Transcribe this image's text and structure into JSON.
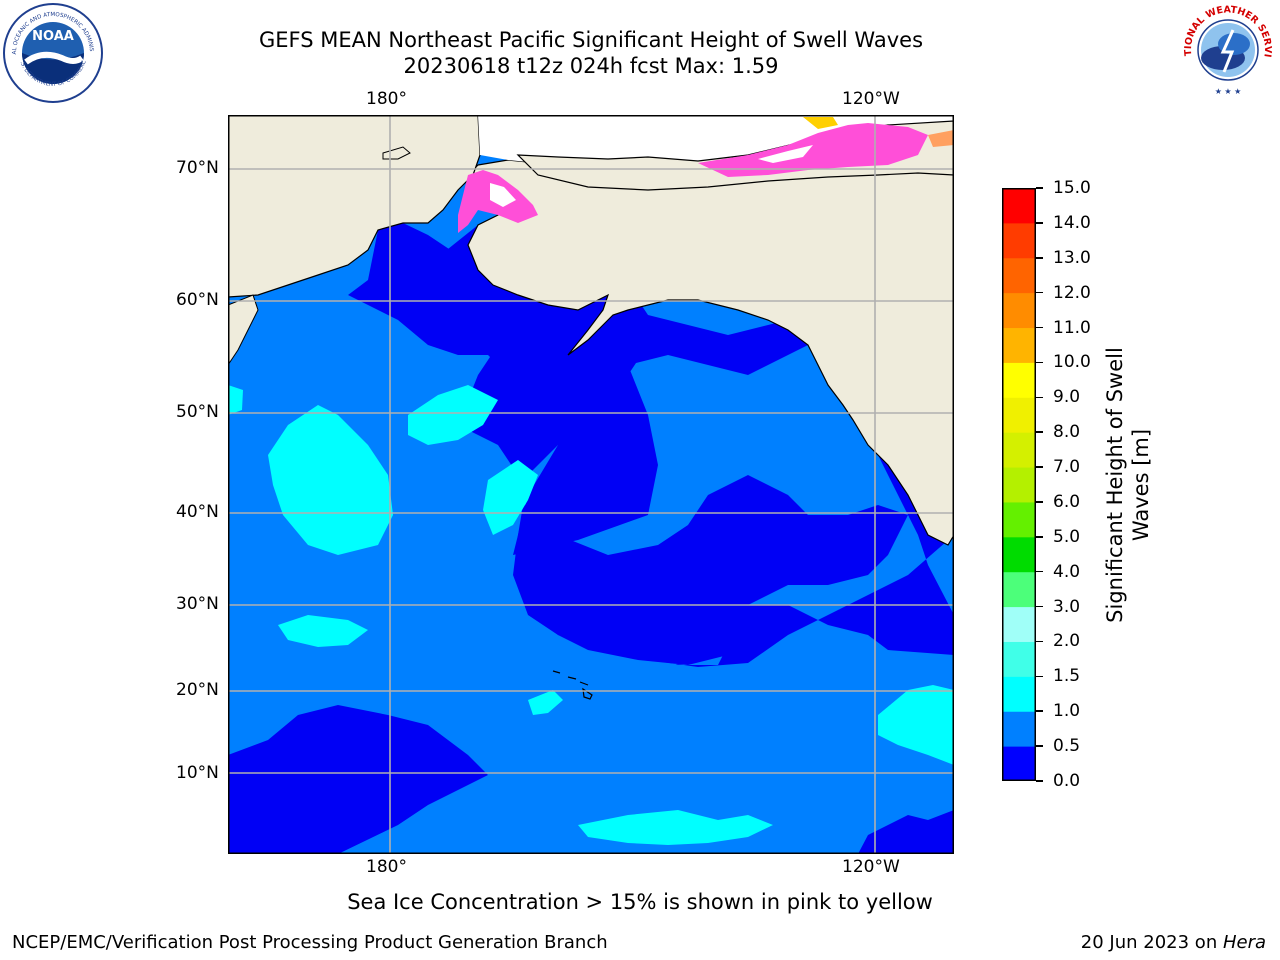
{
  "header": {
    "title_line1": "GEFS MEAN Northeast Pacific Significant Height of Swell Waves",
    "title_line2": "20230618 t12z 024h fcst   Max: 1.59"
  },
  "logos": {
    "noaa": {
      "text": "NOAA",
      "ring_text_top": "NATIONAL OCEANIC AND ATMOSPHERIC ADMINISTRATION",
      "ring_text_bottom": "U.S. DEPARTMENT OF COMMERCE"
    },
    "nws": {
      "ring_text": "NATIONAL WEATHER SERVICE"
    }
  },
  "map": {
    "top_lon_labels": [
      "180°",
      "120°W"
    ],
    "bottom_lon_labels": [
      "180°",
      "120°W"
    ],
    "lat_labels": [
      "70°N",
      "60°N",
      "50°N",
      "40°N",
      "30°N",
      "20°N",
      "10°N"
    ],
    "colors": {
      "land": "#efecdc",
      "ocean_deep": "#0000f5",
      "band_0_5_1_0": "#0080ff",
      "band_1_0_1_5": "#00ffff",
      "band_1_5_2_0": "#40ffe8",
      "ice_pink": "#ff4fd8",
      "ice_yellow": "#ffd000",
      "grid": "#b0b0b0",
      "coast": "#000000"
    }
  },
  "colorbar": {
    "label": "Significant Height of Swell Waves [m]",
    "ticks": [
      "15.0",
      "14.0",
      "13.0",
      "12.0",
      "11.0",
      "10.0",
      "9.0",
      "8.0",
      "7.0",
      "6.0",
      "5.0",
      "4.0",
      "3.0",
      "2.0",
      "1.5",
      "1.0",
      "0.5",
      "0.0"
    ],
    "levels": [
      {
        "lower": 0.0,
        "upper": 0.5,
        "color": "#0000ff"
      },
      {
        "lower": 0.5,
        "upper": 1.0,
        "color": "#0080ff"
      },
      {
        "lower": 1.0,
        "upper": 1.5,
        "color": "#00ffff"
      },
      {
        "lower": 1.5,
        "upper": 2.0,
        "color": "#40ffe8"
      },
      {
        "lower": 2.0,
        "upper": 3.0,
        "color": "#a0fff8"
      },
      {
        "lower": 3.0,
        "upper": 4.0,
        "color": "#4cff7a"
      },
      {
        "lower": 4.0,
        "upper": 5.0,
        "color": "#00dc00"
      },
      {
        "lower": 5.0,
        "upper": 6.0,
        "color": "#64f000"
      },
      {
        "lower": 6.0,
        "upper": 7.0,
        "color": "#b4f000"
      },
      {
        "lower": 7.0,
        "upper": 8.0,
        "color": "#d4f000"
      },
      {
        "lower": 8.0,
        "upper": 9.0,
        "color": "#f0f000"
      },
      {
        "lower": 9.0,
        "upper": 10.0,
        "color": "#ffff00"
      },
      {
        "lower": 10.0,
        "upper": 11.0,
        "color": "#ffb400"
      },
      {
        "lower": 11.0,
        "upper": 12.0,
        "color": "#ff8c00"
      },
      {
        "lower": 12.0,
        "upper": 13.0,
        "color": "#ff6400"
      },
      {
        "lower": 13.0,
        "upper": 14.0,
        "color": "#ff3c00"
      },
      {
        "lower": 14.0,
        "upper": 15.0,
        "color": "#ff0000"
      }
    ]
  },
  "notes": {
    "sea_ice": "Sea Ice Concentration > 15% is shown in pink to yellow"
  },
  "footer": {
    "left": "NCEP/EMC/Verification Post Processing Product Generation Branch",
    "right_prefix": "20 Jun 2023 on ",
    "right_machine": "Hera"
  }
}
